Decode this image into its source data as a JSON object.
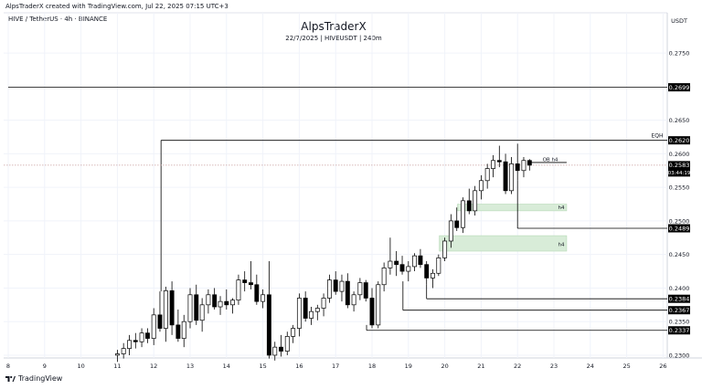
{
  "header": {
    "attribution": "AlpsTraderX created with TradingView.com, Jul 22, 2025 07:15 UTC+3",
    "symbol_line": "HIVE / TetherUS · 4h · BINANCE",
    "title": "AlpsTraderX",
    "subtitle": "22/7/2025 | HIVEUSDT | 240m",
    "brand": "TradingView"
  },
  "colors": {
    "up_candle": "#ffffff",
    "down_candle": "#000000",
    "wick": "#000000",
    "ob_zone": "#d8ecd8",
    "ob_zone_border": "#b5d9b5",
    "level_line": "#000000",
    "price_line": "#c9a0a0",
    "label_bg": "#000000",
    "label_text": "#ffffff"
  },
  "chart_data": {
    "type": "candlestick",
    "y_unit": "USDT",
    "ylim": [
      0.2285,
      0.2795
    ],
    "y_ticks": [
      "0.2750",
      "0.2650",
      "0.2600",
      "0.2550",
      "0.2500",
      "0.2450",
      "0.2400",
      "0.2350",
      "0.2300"
    ],
    "x_ticks": [
      "8",
      "9",
      "10",
      "11",
      "12",
      "13",
      "14",
      "15",
      "16",
      "17",
      "18",
      "19",
      "20",
      "21",
      "22",
      "23",
      "24",
      "25",
      "26"
    ],
    "x_tick_days": [
      8,
      9,
      10,
      11,
      12,
      13,
      14,
      15,
      16,
      17,
      18,
      19,
      20,
      21,
      22,
      23,
      24,
      25,
      26
    ],
    "grid": true,
    "candles": [
      {
        "t": 11.0,
        "o": 0.23,
        "h": 0.2308,
        "l": 0.229,
        "c": 0.2302
      },
      {
        "t": 11.17,
        "o": 0.2302,
        "h": 0.2318,
        "l": 0.2295,
        "c": 0.231
      },
      {
        "t": 11.33,
        "o": 0.231,
        "h": 0.233,
        "l": 0.23,
        "c": 0.2322
      },
      {
        "t": 11.5,
        "o": 0.2322,
        "h": 0.2333,
        "l": 0.231,
        "c": 0.232
      },
      {
        "t": 11.67,
        "o": 0.232,
        "h": 0.234,
        "l": 0.2312,
        "c": 0.2333
      },
      {
        "t": 11.83,
        "o": 0.2333,
        "h": 0.234,
        "l": 0.2318,
        "c": 0.2325
      },
      {
        "t": 12.0,
        "o": 0.2325,
        "h": 0.237,
        "l": 0.2315,
        "c": 0.236
      },
      {
        "t": 12.17,
        "o": 0.236,
        "h": 0.2395,
        "l": 0.2335,
        "c": 0.234
      },
      {
        "t": 12.33,
        "o": 0.234,
        "h": 0.2402,
        "l": 0.232,
        "c": 0.2396
      },
      {
        "t": 12.5,
        "o": 0.2396,
        "h": 0.241,
        "l": 0.233,
        "c": 0.2345
      },
      {
        "t": 12.67,
        "o": 0.2345,
        "h": 0.2368,
        "l": 0.232,
        "c": 0.2325
      },
      {
        "t": 12.83,
        "o": 0.2325,
        "h": 0.236,
        "l": 0.2312,
        "c": 0.235
      },
      {
        "t": 13.0,
        "o": 0.235,
        "h": 0.24,
        "l": 0.234,
        "c": 0.239
      },
      {
        "t": 13.17,
        "o": 0.239,
        "h": 0.2405,
        "l": 0.2345,
        "c": 0.2352
      },
      {
        "t": 13.33,
        "o": 0.2352,
        "h": 0.2385,
        "l": 0.2335,
        "c": 0.2375
      },
      {
        "t": 13.5,
        "o": 0.2375,
        "h": 0.2398,
        "l": 0.2362,
        "c": 0.239
      },
      {
        "t": 13.67,
        "o": 0.239,
        "h": 0.24,
        "l": 0.2368,
        "c": 0.2372
      },
      {
        "t": 13.83,
        "o": 0.2372,
        "h": 0.2388,
        "l": 0.236,
        "c": 0.238
      },
      {
        "t": 14.0,
        "o": 0.238,
        "h": 0.2398,
        "l": 0.2368,
        "c": 0.2375
      },
      {
        "t": 14.17,
        "o": 0.2375,
        "h": 0.2385,
        "l": 0.2362,
        "c": 0.2382
      },
      {
        "t": 14.33,
        "o": 0.2382,
        "h": 0.242,
        "l": 0.2375,
        "c": 0.2412
      },
      {
        "t": 14.5,
        "o": 0.2412,
        "h": 0.2425,
        "l": 0.2395,
        "c": 0.2408
      },
      {
        "t": 14.67,
        "o": 0.2408,
        "h": 0.244,
        "l": 0.2398,
        "c": 0.2405
      },
      {
        "t": 14.83,
        "o": 0.2405,
        "h": 0.242,
        "l": 0.2375,
        "c": 0.238
      },
      {
        "t": 15.0,
        "o": 0.238,
        "h": 0.2398,
        "l": 0.237,
        "c": 0.239
      },
      {
        "t": 15.17,
        "o": 0.239,
        "h": 0.244,
        "l": 0.2295,
        "c": 0.23
      },
      {
        "t": 15.33,
        "o": 0.23,
        "h": 0.232,
        "l": 0.2292,
        "c": 0.2312
      },
      {
        "t": 15.5,
        "o": 0.2312,
        "h": 0.233,
        "l": 0.2298,
        "c": 0.2306
      },
      {
        "t": 15.67,
        "o": 0.2306,
        "h": 0.2335,
        "l": 0.23,
        "c": 0.2328
      },
      {
        "t": 15.83,
        "o": 0.2328,
        "h": 0.2345,
        "l": 0.2318,
        "c": 0.234
      },
      {
        "t": 16.0,
        "o": 0.234,
        "h": 0.2392,
        "l": 0.2328,
        "c": 0.2385
      },
      {
        "t": 16.17,
        "o": 0.2385,
        "h": 0.2395,
        "l": 0.235,
        "c": 0.2355
      },
      {
        "t": 16.33,
        "o": 0.2355,
        "h": 0.2372,
        "l": 0.2345,
        "c": 0.2365
      },
      {
        "t": 16.5,
        "o": 0.2365,
        "h": 0.2375,
        "l": 0.2352,
        "c": 0.237
      },
      {
        "t": 16.67,
        "o": 0.237,
        "h": 0.2392,
        "l": 0.2358,
        "c": 0.2385
      },
      {
        "t": 16.83,
        "o": 0.2385,
        "h": 0.242,
        "l": 0.2378,
        "c": 0.2412
      },
      {
        "t": 17.0,
        "o": 0.2412,
        "h": 0.2425,
        "l": 0.239,
        "c": 0.2395
      },
      {
        "t": 17.17,
        "o": 0.2395,
        "h": 0.242,
        "l": 0.238,
        "c": 0.241
      },
      {
        "t": 17.33,
        "o": 0.241,
        "h": 0.2422,
        "l": 0.237,
        "c": 0.2375
      },
      {
        "t": 17.5,
        "o": 0.2375,
        "h": 0.2395,
        "l": 0.2365,
        "c": 0.239
      },
      {
        "t": 17.67,
        "o": 0.239,
        "h": 0.2415,
        "l": 0.2382,
        "c": 0.2408
      },
      {
        "t": 17.83,
        "o": 0.2408,
        "h": 0.2412,
        "l": 0.238,
        "c": 0.2385
      },
      {
        "t": 18.0,
        "o": 0.2385,
        "h": 0.24,
        "l": 0.234,
        "c": 0.2345
      },
      {
        "t": 18.17,
        "o": 0.2345,
        "h": 0.241,
        "l": 0.234,
        "c": 0.2405
      },
      {
        "t": 18.33,
        "o": 0.2405,
        "h": 0.2438,
        "l": 0.2395,
        "c": 0.243
      },
      {
        "t": 18.5,
        "o": 0.243,
        "h": 0.2475,
        "l": 0.242,
        "c": 0.244
      },
      {
        "t": 18.67,
        "o": 0.244,
        "h": 0.2455,
        "l": 0.2418,
        "c": 0.2435
      },
      {
        "t": 18.83,
        "o": 0.2435,
        "h": 0.2448,
        "l": 0.242,
        "c": 0.2425
      },
      {
        "t": 19.0,
        "o": 0.2425,
        "h": 0.244,
        "l": 0.241,
        "c": 0.2432
      },
      {
        "t": 19.17,
        "o": 0.2432,
        "h": 0.2452,
        "l": 0.2425,
        "c": 0.2448
      },
      {
        "t": 19.33,
        "o": 0.2448,
        "h": 0.2458,
        "l": 0.243,
        "c": 0.2435
      },
      {
        "t": 19.5,
        "o": 0.2435,
        "h": 0.244,
        "l": 0.2405,
        "c": 0.2415
      },
      {
        "t": 19.67,
        "o": 0.2415,
        "h": 0.2428,
        "l": 0.24,
        "c": 0.2422
      },
      {
        "t": 19.83,
        "o": 0.2422,
        "h": 0.245,
        "l": 0.2418,
        "c": 0.2445
      },
      {
        "t": 20.0,
        "o": 0.2445,
        "h": 0.2475,
        "l": 0.244,
        "c": 0.247
      },
      {
        "t": 20.17,
        "o": 0.247,
        "h": 0.251,
        "l": 0.246,
        "c": 0.25
      },
      {
        "t": 20.33,
        "o": 0.25,
        "h": 0.252,
        "l": 0.2485,
        "c": 0.249
      },
      {
        "t": 20.5,
        "o": 0.249,
        "h": 0.2535,
        "l": 0.2482,
        "c": 0.253
      },
      {
        "t": 20.67,
        "o": 0.253,
        "h": 0.2548,
        "l": 0.251,
        "c": 0.2515
      },
      {
        "t": 20.83,
        "o": 0.2515,
        "h": 0.2552,
        "l": 0.2508,
        "c": 0.2545
      },
      {
        "t": 21.0,
        "o": 0.2545,
        "h": 0.2568,
        "l": 0.2532,
        "c": 0.256
      },
      {
        "t": 21.17,
        "o": 0.256,
        "h": 0.2585,
        "l": 0.2548,
        "c": 0.2578
      },
      {
        "t": 21.33,
        "o": 0.2578,
        "h": 0.2598,
        "l": 0.2565,
        "c": 0.259
      },
      {
        "t": 21.5,
        "o": 0.259,
        "h": 0.2612,
        "l": 0.258,
        "c": 0.2588
      },
      {
        "t": 21.67,
        "o": 0.2588,
        "h": 0.26,
        "l": 0.254,
        "c": 0.2545
      },
      {
        "t": 21.83,
        "o": 0.2545,
        "h": 0.2595,
        "l": 0.254,
        "c": 0.2585
      },
      {
        "t": 22.0,
        "o": 0.2585,
        "h": 0.2615,
        "l": 0.256,
        "c": 0.2575
      },
      {
        "t": 22.17,
        "o": 0.2575,
        "h": 0.2595,
        "l": 0.2565,
        "c": 0.259
      },
      {
        "t": 22.33,
        "o": 0.259,
        "h": 0.2592,
        "l": 0.2575,
        "c": 0.2583
      }
    ],
    "levels": [
      {
        "price": 0.2699,
        "label": "0.2699",
        "from": 8.0
      },
      {
        "price": 0.262,
        "label": "0.2620",
        "from": 12.2
      },
      {
        "price": 0.2489,
        "label": "0.2489",
        "from": 22.0
      },
      {
        "price": 0.2384,
        "label": "0.2384",
        "from": 19.5
      },
      {
        "price": 0.2367,
        "label": "0.2367",
        "from": 18.85
      },
      {
        "price": 0.2337,
        "label": "0.2337",
        "from": 17.85
      }
    ],
    "current_price": {
      "price": 0.2583,
      "label": "0.2583",
      "countdown": "03:44:19"
    },
    "annotations": [
      {
        "text": "EQH",
        "price": 0.262
      },
      {
        "text": "OB h4",
        "price": 0.2587,
        "t": 22.9
      },
      {
        "text": "h4",
        "price": 0.252,
        "t": 23.2
      },
      {
        "text": "h4",
        "price": 0.2465,
        "t": 23.2
      }
    ],
    "zones": [
      {
        "t0": 20.35,
        "t1": 23.35,
        "top": 0.2525,
        "bottom": 0.2515
      },
      {
        "t0": 19.85,
        "t1": 23.35,
        "top": 0.2478,
        "bottom": 0.2455
      }
    ],
    "ob_line": {
      "t0": 22.3,
      "t1": 23.35,
      "price": 0.2587
    }
  }
}
